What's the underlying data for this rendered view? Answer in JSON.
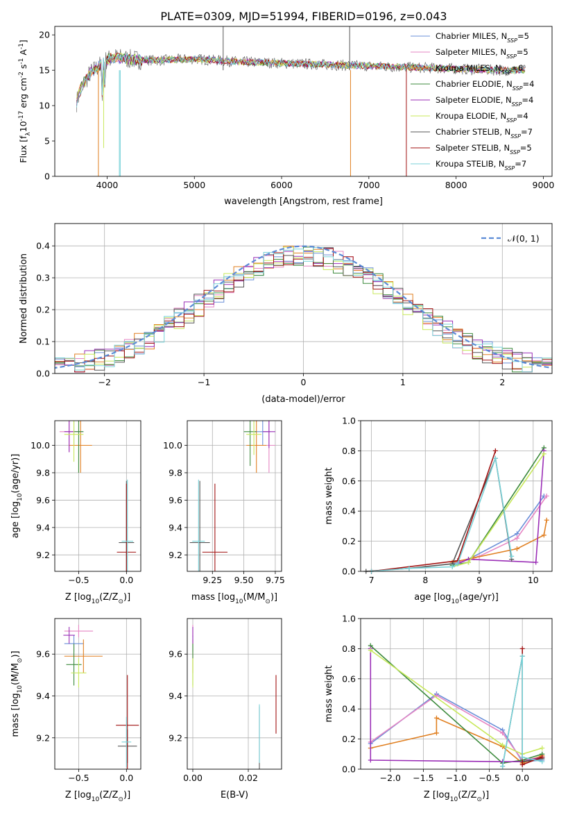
{
  "colors": [
    "#6a8fd8",
    "#e585c3",
    "#e07f20",
    "#3c8a3c",
    "#9a2db6",
    "#c8e85a",
    "#555555",
    "#a01010",
    "#78d2d8"
  ],
  "chart_data": [
    {
      "id": "spectrum",
      "type": "line",
      "title": "PLATE=0309, MJD=51994, FIBERID=0196, z=0.043",
      "xlabel": "wavelength [Angstrom, rest frame]",
      "ylabel_parts": [
        "Flux [f",
        "λ",
        "10",
        "-17",
        " erg cm",
        "-2",
        " s",
        "-1",
        " A",
        "-1",
        "]"
      ],
      "xlim": [
        3400,
        9100
      ],
      "ylim": [
        0,
        21.2
      ],
      "xticks": [
        4000,
        5000,
        6000,
        7000,
        8000,
        9000
      ],
      "yticks": [
        0,
        5,
        10,
        15,
        20
      ],
      "continuum_x": [
        3650,
        3700,
        3800,
        3900,
        4000,
        4100,
        4300,
        4600,
        5000,
        5500,
        6000,
        6500,
        7000,
        7500,
        8000,
        8500,
        8800
      ],
      "continuum_y": [
        10.5,
        12.5,
        14.5,
        15.5,
        16.5,
        16.8,
        16.5,
        16.4,
        16.6,
        16.2,
        16.0,
        15.8,
        15.6,
        15.4,
        15.2,
        15.0,
        15.0
      ],
      "legend": [
        {
          "name": "Chabrier MILES",
          "n": "5"
        },
        {
          "name": "Salpeter MILES",
          "n": "5"
        },
        {
          "name": "Kroupa MILES",
          "n": "6"
        },
        {
          "name": "Chabrier ELODIE",
          "n": "4"
        },
        {
          "name": "Salpeter ELODIE",
          "n": "4"
        },
        {
          "name": "Kroupa ELODIE",
          "n": "4"
        },
        {
          "name": "Chabrier STELIB",
          "n": "7"
        },
        {
          "name": "Salpeter STELIB",
          "n": "5"
        },
        {
          "name": "Kroupa STELIB",
          "n": "7"
        }
      ],
      "legend_prefix": "N",
      "legend_sub": "SSP",
      "grid": false,
      "legend_placement": "right"
    },
    {
      "id": "residual-histogram",
      "type": "histogram",
      "xlabel": "(data-model)/error",
      "ylabel": "Normed distribution",
      "xlim": [
        -2.5,
        2.5
      ],
      "ylim": [
        0,
        0.47
      ],
      "xticks": [
        -2,
        -1,
        0,
        1,
        2
      ],
      "yticks": [
        0.0,
        0.1,
        0.2,
        0.3,
        0.4
      ],
      "bin_width": 0.1,
      "reference_curve": "gaussian",
      "legend": "𝒩(0, 1)",
      "grid": true,
      "legend_placement": "top-right"
    },
    {
      "id": "age-vs-z",
      "type": "scatter",
      "xlabel_parts": [
        "Z [log",
        "10",
        "(Z/Z",
        "⊙",
        ")]"
      ],
      "ylabel_parts": [
        "age  [log",
        "10",
        "(age/yr)]"
      ],
      "xlim": [
        -0.75,
        0.15
      ],
      "ylim": [
        9.08,
        10.18
      ],
      "xticks": [
        -0.5,
        0.0
      ],
      "yticks": [
        9.2,
        9.4,
        9.6,
        9.8,
        10.0
      ],
      "points": [
        {
          "x": -0.55,
          "y": 10.1,
          "xerr": 0.1,
          "yerr": 0.1
        },
        {
          "x": -0.6,
          "y": 10.1,
          "xerr": 0.1,
          "yerr": 0.15
        },
        {
          "x": -0.48,
          "y": 10.0,
          "xerr": 0.12,
          "yerr": 0.2
        },
        {
          "x": -0.5,
          "y": 10.1,
          "xerr": 0.05,
          "yerr": 0.3
        },
        {
          "x": -0.6,
          "y": 10.1,
          "xerr": 0.05,
          "yerr": 0.15
        },
        {
          "x": -0.55,
          "y": 10.08,
          "xerr": 0.1,
          "yerr": 0.2
        },
        {
          "x": 0.0,
          "y": 9.29,
          "xerr": 0.08,
          "yerr": 0.45
        },
        {
          "x": 0.0,
          "y": 9.22,
          "xerr": 0.1,
          "yerr": 0.5
        },
        {
          "x": 0.01,
          "y": 9.3,
          "xerr": 0.06,
          "yerr": 0.45
        }
      ],
      "grid": true
    },
    {
      "id": "age-vs-mass",
      "type": "scatter",
      "xlabel_parts": [
        "mass [log",
        "10",
        "(M/M",
        "⊙",
        ")]"
      ],
      "ylabel_parts": [],
      "xlim": [
        9.05,
        9.8
      ],
      "ylim": [
        9.08,
        10.18
      ],
      "xticks": [
        9.25,
        9.5,
        9.75
      ],
      "yticks": [
        9.2,
        9.4,
        9.6,
        9.8,
        10.0
      ],
      "points": [
        {
          "x": 9.65,
          "y": 10.1,
          "xerr": 0.06,
          "yerr": 0.1
        },
        {
          "x": 9.7,
          "y": 10.0,
          "xerr": 0.05,
          "yerr": 0.2
        },
        {
          "x": 9.6,
          "y": 10.0,
          "xerr": 0.08,
          "yerr": 0.2
        },
        {
          "x": 9.55,
          "y": 10.1,
          "xerr": 0.05,
          "yerr": 0.25
        },
        {
          "x": 9.7,
          "y": 10.1,
          "xerr": 0.05,
          "yerr": 0.12
        },
        {
          "x": 9.58,
          "y": 10.08,
          "xerr": 0.06,
          "yerr": 0.15
        },
        {
          "x": 9.15,
          "y": 9.29,
          "xerr": 0.08,
          "yerr": 0.45
        },
        {
          "x": 9.27,
          "y": 9.22,
          "xerr": 0.1,
          "yerr": 0.5
        },
        {
          "x": 9.14,
          "y": 9.3,
          "xerr": 0.05,
          "yerr": 0.45
        }
      ],
      "grid": true
    },
    {
      "id": "weight-vs-age",
      "type": "line",
      "xlabel_parts": [
        "age  [log",
        "10",
        "(age/yr)]"
      ],
      "ylabel": "mass weight",
      "xlim": [
        6.8,
        10.35
      ],
      "ylim": [
        0,
        1.0
      ],
      "xticks": [
        7,
        8,
        9,
        10
      ],
      "yticks": [
        0.0,
        0.2,
        0.4,
        0.6,
        0.8,
        1.0
      ],
      "series": [
        {
          "x": [
            8.5,
            8.8,
            9.7,
            10.2
          ],
          "y": [
            0.05,
            0.08,
            0.25,
            0.5
          ]
        },
        {
          "x": [
            8.6,
            9.0,
            9.7,
            10.25
          ],
          "y": [
            0.06,
            0.1,
            0.22,
            0.5
          ]
        },
        {
          "x": [
            8.5,
            8.9,
            9.7,
            10.2,
            10.25
          ],
          "y": [
            0.06,
            0.09,
            0.15,
            0.24,
            0.34
          ]
        },
        {
          "x": [
            8.5,
            8.8,
            10.2
          ],
          "y": [
            0.04,
            0.06,
            0.82
          ]
        },
        {
          "x": [
            8.6,
            8.8,
            10.05,
            10.2
          ],
          "y": [
            0.05,
            0.08,
            0.06,
            0.8
          ]
        },
        {
          "x": [
            8.5,
            8.8,
            10.2
          ],
          "y": [
            0.03,
            0.06,
            0.78
          ]
        },
        {
          "x": [
            6.9,
            7.7,
            8.5,
            9.3,
            9.6
          ],
          "y": [
            0.0,
            0.02,
            0.05,
            0.75,
            0.08
          ]
        },
        {
          "x": [
            7.0,
            8.6,
            9.3
          ],
          "y": [
            0.0,
            0.07,
            0.8
          ]
        },
        {
          "x": [
            7.0,
            7.7,
            8.5,
            8.6,
            9.3,
            9.6
          ],
          "y": [
            0.0,
            0.02,
            0.03,
            0.05,
            0.75,
            0.1
          ]
        }
      ],
      "grid": true
    },
    {
      "id": "mass-vs-z",
      "type": "scatter",
      "xlabel_parts": [
        "Z [log",
        "10",
        "(Z/Z",
        "⊙",
        ")]"
      ],
      "ylabel_parts": [
        "mass [log",
        "10",
        "(M/M",
        "⊙",
        ")]"
      ],
      "xlim": [
        -0.75,
        0.15
      ],
      "ylim": [
        9.05,
        9.77
      ],
      "xticks": [
        -0.5,
        0.0
      ],
      "yticks": [
        9.2,
        9.4,
        9.6
      ],
      "points": [
        {
          "x": -0.55,
          "y": 9.65,
          "xerr": 0.1,
          "yerr": 0.04
        },
        {
          "x": -0.5,
          "y": 9.71,
          "xerr": 0.15,
          "yerr": 0.03
        },
        {
          "x": -0.45,
          "y": 9.59,
          "xerr": 0.2,
          "yerr": 0.08
        },
        {
          "x": -0.55,
          "y": 9.55,
          "xerr": 0.08,
          "yerr": 0.1
        },
        {
          "x": -0.6,
          "y": 9.69,
          "xerr": 0.06,
          "yerr": 0.04
        },
        {
          "x": -0.5,
          "y": 9.51,
          "xerr": 0.08,
          "yerr": 0.07
        },
        {
          "x": 0.01,
          "y": 9.16,
          "xerr": 0.1,
          "yerr": 0.08
        },
        {
          "x": 0.01,
          "y": 9.26,
          "xerr": 0.12,
          "yerr": 0.24
        },
        {
          "x": 0.0,
          "y": 9.18,
          "xerr": 0.05,
          "yerr": 0.12
        }
      ],
      "grid": true
    },
    {
      "id": "mass-vs-ebv",
      "type": "scatter",
      "xlabel": "E(B-V)",
      "ylabel_parts": [],
      "xlim": [
        -0.002,
        0.032
      ],
      "ylim": [
        9.05,
        9.77
      ],
      "xticks": [
        0.0,
        0.02
      ],
      "yticks": [
        9.2,
        9.4,
        9.6
      ],
      "points": [
        {
          "x": 0.0,
          "y": 9.65,
          "xerr": 0,
          "yerr": 0.04
        },
        {
          "x": 0.0,
          "y": 9.71,
          "xerr": 0,
          "yerr": 0.03
        },
        {
          "x": 0.0,
          "y": 9.59,
          "xerr": 0,
          "yerr": 0.08
        },
        {
          "x": 0.0,
          "y": 9.55,
          "xerr": 0,
          "yerr": 0.1
        },
        {
          "x": 0.0,
          "y": 9.69,
          "xerr": 0,
          "yerr": 0.04
        },
        {
          "x": 0.0,
          "y": 9.51,
          "xerr": 0,
          "yerr": 0.07
        },
        {
          "x": 0.024,
          "y": 9.2,
          "xerr": 0,
          "yerr": 0.15
        },
        {
          "x": 0.03,
          "y": 9.36,
          "xerr": 0,
          "yerr": 0.14
        },
        {
          "x": 0.024,
          "y": 9.22,
          "xerr": 0,
          "yerr": 0.14
        }
      ],
      "grid": true
    },
    {
      "id": "weight-vs-z",
      "type": "line",
      "xlabel_parts": [
        "Z [log",
        "10",
        "(Z/Z",
        "⊙",
        ")]"
      ],
      "ylabel": "mass weight",
      "xlim": [
        -2.45,
        0.45
      ],
      "ylim": [
        0,
        1.0
      ],
      "xticks": [
        -2.0,
        -1.5,
        -1.0,
        -0.5,
        0.0
      ],
      "yticks": [
        0.0,
        0.2,
        0.4,
        0.6,
        0.8,
        1.0
      ],
      "series": [
        {
          "x": [
            -2.3,
            -1.3,
            -0.3,
            0.0,
            0.3
          ],
          "y": [
            0.17,
            0.5,
            0.26,
            0.05,
            0.06
          ]
        },
        {
          "x": [
            -2.3,
            -1.3,
            -0.3,
            0.0,
            0.3
          ],
          "y": [
            0.18,
            0.49,
            0.24,
            0.06,
            0.08
          ]
        },
        {
          "x": [
            -2.3,
            -1.3,
            -1.3,
            -0.3,
            0.0,
            0.3
          ],
          "y": [
            0.14,
            0.24,
            0.34,
            0.15,
            0.04,
            0.09
          ]
        },
        {
          "x": [
            -2.3,
            -0.3,
            0.0,
            0.3
          ],
          "y": [
            0.82,
            0.04,
            0.06,
            0.1
          ]
        },
        {
          "x": [
            -2.3,
            -2.3,
            -0.3,
            0.0,
            0.3
          ],
          "y": [
            0.8,
            0.06,
            0.05,
            0.05,
            0.08
          ]
        },
        {
          "x": [
            -2.3,
            -0.3,
            0.0,
            0.3
          ],
          "y": [
            0.79,
            0.16,
            0.1,
            0.14
          ]
        },
        {
          "x": [
            -0.3,
            0.0,
            0.0,
            0.3
          ],
          "y": [
            0.02,
            0.75,
            0.05,
            0.07
          ]
        },
        {
          "x": [
            0.0,
            0.0,
            0.3
          ],
          "y": [
            0.8,
            0.03,
            0.08
          ]
        },
        {
          "x": [
            -0.3,
            0.0,
            0.0,
            0.3
          ],
          "y": [
            0.02,
            0.75,
            0.08,
            0.05
          ]
        }
      ],
      "grid": true
    }
  ]
}
